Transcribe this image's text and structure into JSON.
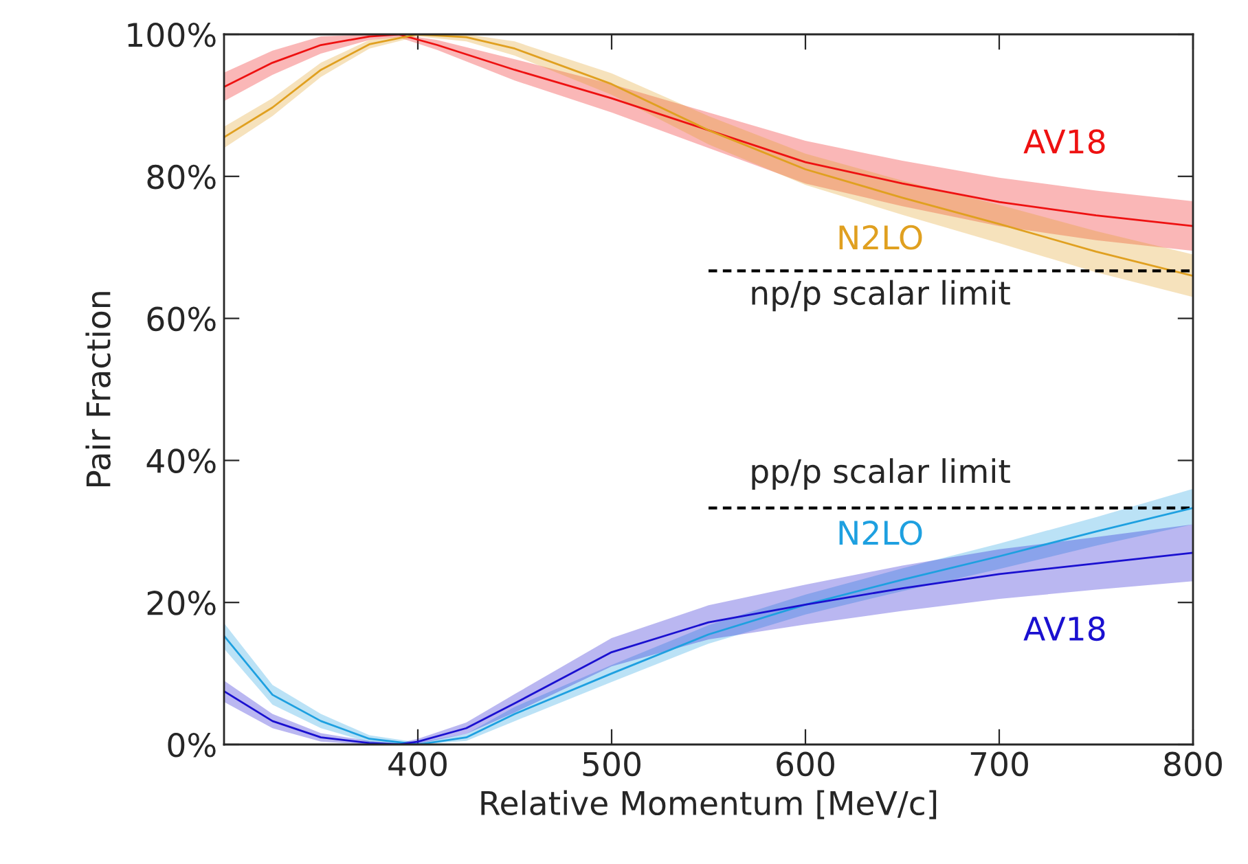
{
  "chart_data": {
    "type": "line",
    "xlabel": "Relative Momentum [MeV/c]",
    "ylabel": "Pair Fraction",
    "xlim": [
      300,
      800
    ],
    "ylim": [
      0,
      100
    ],
    "xticks": [
      400,
      500,
      600,
      700,
      800
    ],
    "yticks": [
      {
        "value": 0,
        "label": "0%"
      },
      {
        "value": 20,
        "label": "20%"
      },
      {
        "value": 40,
        "label": "40%"
      },
      {
        "value": 60,
        "label": "60%"
      },
      {
        "value": 80,
        "label": "80%"
      },
      {
        "value": 100,
        "label": "100%"
      }
    ],
    "grid": false,
    "legend": false,
    "marker": "none",
    "series": [
      {
        "name": "AV18",
        "color": "#ee1111",
        "x": [
          300,
          325,
          350,
          375,
          390,
          410,
          450,
          500,
          550,
          600,
          650,
          700,
          750,
          800
        ],
        "values": [
          92.6,
          96,
          98.5,
          99.7,
          100,
          98.5,
          95,
          91,
          86.5,
          82,
          79,
          76.4,
          74.5,
          73
        ],
        "lower": [
          90.6,
          94.3,
          97.3,
          99.2,
          99.6,
          97.8,
          93.5,
          89,
          84,
          79,
          75.8,
          73,
          71,
          69.5
        ],
        "upper": [
          94.6,
          97.7,
          99.7,
          100,
          100,
          99.2,
          96.5,
          93,
          89,
          85,
          82.2,
          79.8,
          78,
          76.5
        ]
      },
      {
        "name": "N2LO",
        "color": "#e0a020",
        "x": [
          300,
          325,
          350,
          375,
          400,
          425,
          450,
          500,
          550,
          600,
          650,
          700,
          750,
          800
        ],
        "values": [
          85.5,
          89.7,
          95,
          98.6,
          100,
          99.6,
          98,
          93,
          86.5,
          81,
          77,
          73.3,
          69.4,
          66
        ],
        "lower": [
          84,
          88.5,
          94,
          98,
          99.7,
          99,
          97,
          91.5,
          84.5,
          78.8,
          74.6,
          70.6,
          66.5,
          63
        ],
        "upper": [
          87,
          91,
          96,
          99.2,
          100,
          100,
          99,
          94.5,
          88.5,
          83.2,
          79.4,
          76,
          72.3,
          69
        ]
      },
      {
        "type": "line",
        "color": "#000000",
        "line_style": "dashed",
        "x": [
          550,
          800
        ],
        "values": [
          66.7,
          66.7
        ]
      },
      {
        "type": "line",
        "color": "#000000",
        "line_style": "dashed",
        "x": [
          550,
          800
        ],
        "values": [
          33.3,
          33.3
        ]
      },
      {
        "name": "N2LO",
        "color": "#1ea0e0",
        "x": [
          300,
          325,
          350,
          375,
          400,
          425,
          450,
          500,
          550,
          600,
          650,
          700,
          750,
          800
        ],
        "values": [
          15.3,
          7,
          3.3,
          0.8,
          0,
          1,
          4.3,
          10,
          15.5,
          19.7,
          23.2,
          26.5,
          30,
          33.3
        ],
        "lower": [
          13.5,
          5.6,
          2.3,
          0.3,
          0,
          0.5,
          3.3,
          8.8,
          14.2,
          18.3,
          21.6,
          24.7,
          28,
          31
        ],
        "upper": [
          17.1,
          8.4,
          4.3,
          1.3,
          0.3,
          1.5,
          5.3,
          11.2,
          16.8,
          21.1,
          24.8,
          28.3,
          32,
          36
        ]
      },
      {
        "name": "AV18",
        "color": "#1a10d0",
        "x": [
          300,
          325,
          350,
          375,
          390,
          400,
          425,
          450,
          500,
          550,
          600,
          650,
          700,
          750,
          800
        ],
        "values": [
          7.5,
          3.3,
          1,
          0.2,
          0,
          0.4,
          2.3,
          5.8,
          13,
          17.2,
          19.7,
          22,
          24,
          25.5,
          27
        ],
        "lower": [
          6,
          2.3,
          0.4,
          0,
          0,
          0.1,
          1.5,
          4.5,
          11,
          14.8,
          16.9,
          18.8,
          20.5,
          21.8,
          23
        ],
        "upper": [
          9,
          4.3,
          1.6,
          0.5,
          0.2,
          0.8,
          3.1,
          7.1,
          15,
          19.6,
          22.5,
          25.2,
          27.5,
          29.2,
          31
        ]
      }
    ],
    "annotations": [
      "np/p scalar limit",
      "pp/p scalar limit"
    ]
  }
}
